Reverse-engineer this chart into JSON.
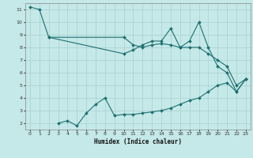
{
  "xlabel": "Humidex (Indice chaleur)",
  "xlim": [
    -0.5,
    23.5
  ],
  "ylim": [
    1.5,
    11.5
  ],
  "xticks": [
    0,
    1,
    2,
    3,
    4,
    5,
    6,
    7,
    8,
    9,
    10,
    11,
    12,
    13,
    14,
    15,
    16,
    17,
    18,
    19,
    20,
    21,
    22,
    23
  ],
  "yticks": [
    2,
    3,
    4,
    5,
    6,
    7,
    8,
    9,
    10,
    11
  ],
  "background_color": "#c5e8e8",
  "grid_color": "#a8d0d0",
  "line_color": "#1e7070",
  "series": [
    {
      "x": [
        0,
        1,
        2,
        10,
        11,
        12,
        13,
        14,
        15,
        16,
        17,
        18,
        19,
        20,
        21,
        22,
        23
      ],
      "y": [
        11.2,
        11.0,
        8.8,
        7.5,
        7.8,
        8.2,
        8.5,
        8.5,
        9.5,
        8.0,
        8.5,
        10.0,
        8.0,
        6.5,
        6.0,
        4.5,
        5.5
      ]
    },
    {
      "x": [
        2,
        10,
        11,
        12,
        13,
        14,
        15,
        16,
        17,
        18,
        19,
        20,
        21,
        22,
        23
      ],
      "y": [
        8.8,
        8.8,
        8.2,
        8.0,
        8.2,
        8.3,
        8.2,
        8.0,
        8.0,
        8.0,
        7.5,
        7.0,
        6.5,
        5.0,
        5.5
      ]
    },
    {
      "x": [
        3,
        4,
        5,
        6,
        7,
        8,
        9,
        10,
        11,
        12,
        13,
        14,
        15,
        16,
        17,
        18,
        19,
        20,
        21,
        22,
        23
      ],
      "y": [
        2.0,
        2.2,
        1.8,
        2.8,
        3.5,
        4.0,
        2.6,
        2.7,
        2.7,
        2.8,
        2.9,
        3.0,
        3.2,
        3.5,
        3.8,
        4.0,
        4.5,
        5.0,
        5.2,
        4.5,
        5.5
      ]
    }
  ]
}
